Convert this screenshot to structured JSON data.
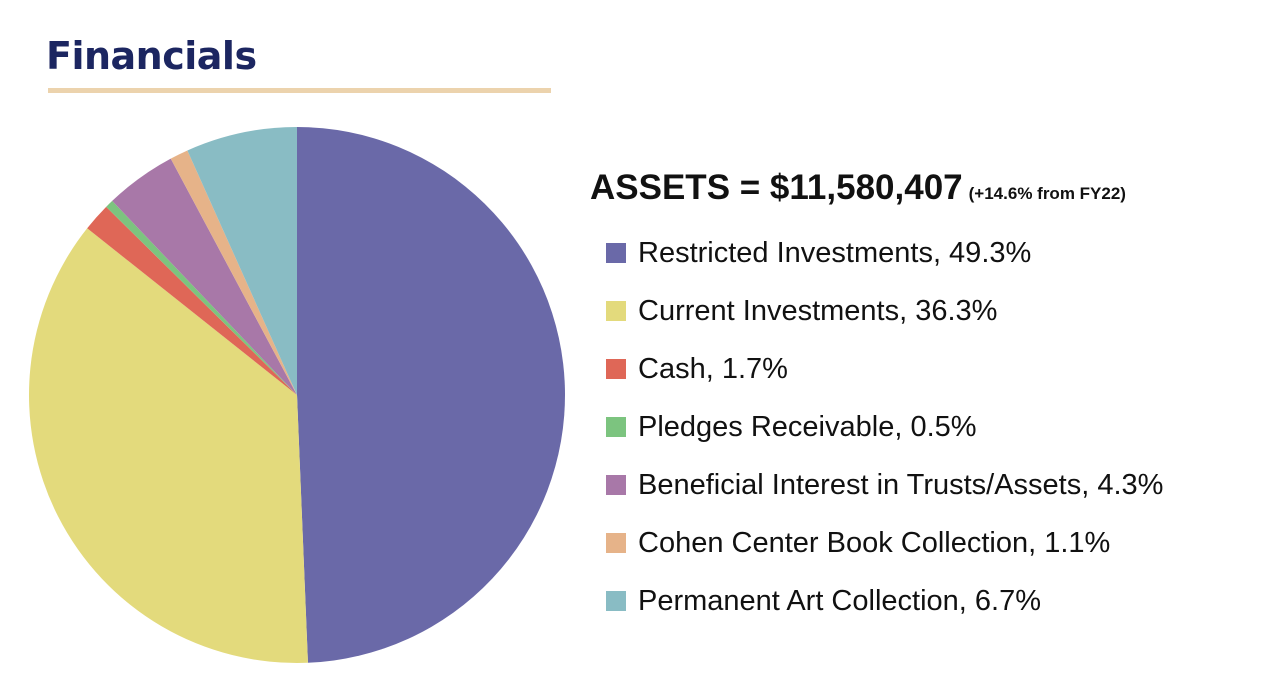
{
  "page": {
    "title": "Financials"
  },
  "assets": {
    "heading": "ASSETS = $11,580,407",
    "change": "(+14.6% from FY22)"
  },
  "chart_data": {
    "type": "pie",
    "title": "",
    "slices": [
      {
        "label": "Restricted Investments",
        "value": 49.3,
        "color": "#6a69a8",
        "legend": "Restricted Investments, 49.3%"
      },
      {
        "label": "Current Investments",
        "value": 36.3,
        "color": "#e3da7c",
        "legend": "Current Investments, 36.3%"
      },
      {
        "label": "Cash",
        "value": 1.7,
        "color": "#df6757",
        "legend": "Cash, 1.7%"
      },
      {
        "label": "Pledges Receivable",
        "value": 0.5,
        "color": "#7cc47f",
        "legend": "Pledges Receivable, 0.5%"
      },
      {
        "label": "Beneficial Interest in Trusts/Assets",
        "value": 4.3,
        "color": "#a878a8",
        "legend": "Beneficial Interest in Trusts/Assets, 4.3%"
      },
      {
        "label": "Cohen Center Book Collection",
        "value": 1.1,
        "color": "#e6b389",
        "legend": "Cohen Center Book Collection, 1.1%"
      },
      {
        "label": "Permanent Art Collection",
        "value": 6.7,
        "color": "#89bcc4",
        "legend": "Permanent Art Collection, 6.7%"
      }
    ],
    "start_angle": "12 o'clock",
    "direction": "clockwise",
    "legend_position": "right"
  }
}
